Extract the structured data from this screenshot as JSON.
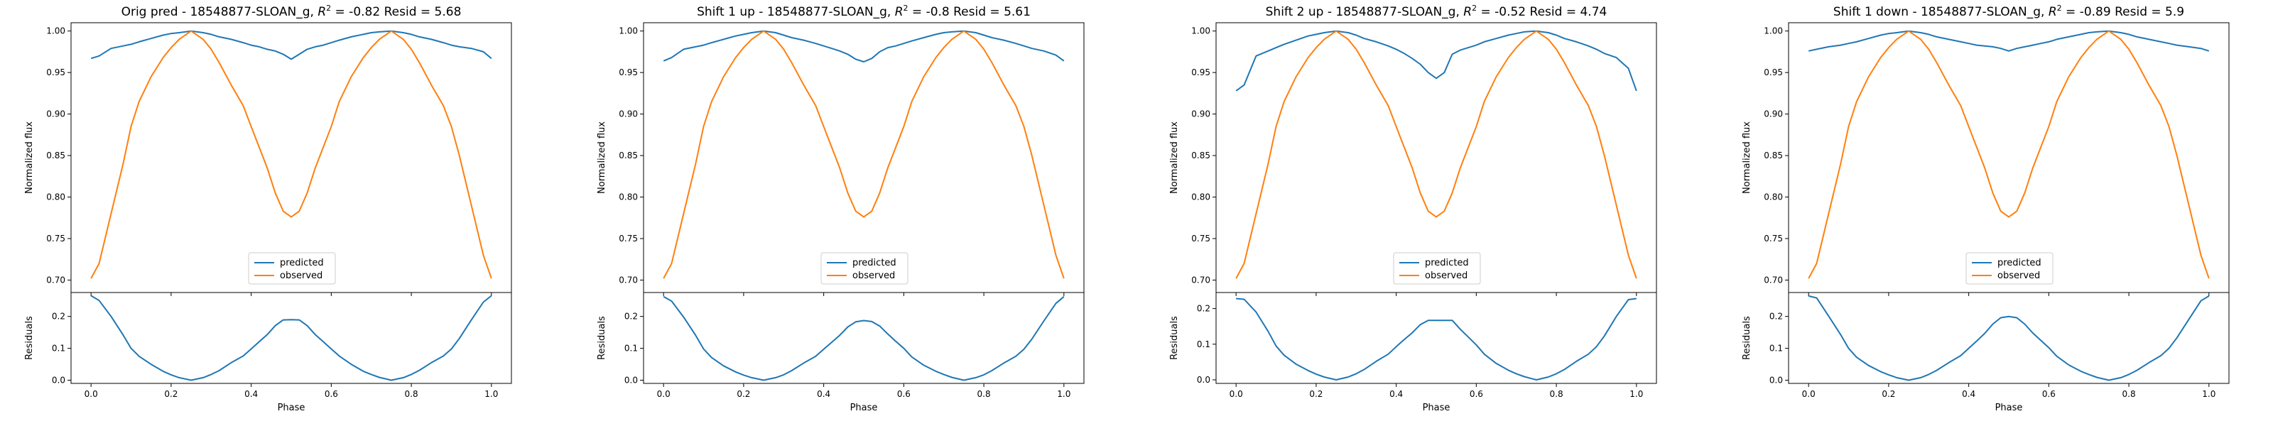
{
  "colors": {
    "predicted": "#1f77b4",
    "observed": "#ff7f0e"
  },
  "chart_data": [
    {
      "type": "line",
      "title": "Orig pred - 18548877-SLOAN_g, R² = -0.82 Resid = 5.68",
      "title_parts": {
        "prefix": "Orig pred - 18548877-SLOAN_g, ",
        "r2_value": "-0.82",
        "resid_value": "5.68"
      },
      "xlabel": "Phase",
      "ylabel_top": "Normalized flux",
      "ylabel_bottom": "Residuals",
      "xlim": [
        -0.05,
        1.05
      ],
      "ylim_top": [
        0.685,
        1.01
      ],
      "ylim_bottom": [
        -0.01,
        0.275
      ],
      "xticks": [
        0.0,
        0.2,
        0.4,
        0.6,
        0.8,
        1.0
      ],
      "yticks_top": [
        0.7,
        0.75,
        0.8,
        0.85,
        0.9,
        0.95,
        1.0
      ],
      "yticks_bottom": [
        0.0,
        0.1,
        0.2
      ],
      "legend": {
        "position": "lower-center",
        "entries": [
          "predicted",
          "observed"
        ]
      },
      "x": [
        0.0,
        0.02,
        0.05,
        0.08,
        0.1,
        0.12,
        0.15,
        0.18,
        0.2,
        0.22,
        0.25,
        0.28,
        0.3,
        0.32,
        0.35,
        0.38,
        0.4,
        0.42,
        0.44,
        0.46,
        0.48,
        0.5,
        0.52,
        0.54,
        0.56,
        0.58,
        0.6,
        0.62,
        0.65,
        0.68,
        0.7,
        0.72,
        0.75,
        0.78,
        0.8,
        0.82,
        0.85,
        0.88,
        0.9,
        0.92,
        0.95,
        0.98,
        1.0
      ],
      "series": [
        {
          "name": "predicted",
          "values": [
            0.967,
            0.97,
            0.979,
            0.982,
            0.984,
            0.987,
            0.991,
            0.995,
            0.997,
            0.998,
            1.0,
            0.998,
            0.996,
            0.993,
            0.99,
            0.986,
            0.983,
            0.981,
            0.978,
            0.976,
            0.972,
            0.966,
            0.972,
            0.978,
            0.981,
            0.983,
            0.986,
            0.989,
            0.993,
            0.996,
            0.998,
            0.999,
            1.0,
            0.998,
            0.996,
            0.993,
            0.99,
            0.986,
            0.983,
            0.981,
            0.979,
            0.975,
            0.967
          ]
        },
        {
          "name": "observed",
          "values": [
            0.702,
            0.72,
            0.78,
            0.84,
            0.885,
            0.915,
            0.945,
            0.968,
            0.98,
            0.99,
            1.0,
            0.99,
            0.978,
            0.962,
            0.935,
            0.91,
            0.885,
            0.86,
            0.835,
            0.805,
            0.783,
            0.776,
            0.783,
            0.805,
            0.835,
            0.86,
            0.885,
            0.915,
            0.945,
            0.968,
            0.98,
            0.99,
            1.0,
            0.99,
            0.978,
            0.962,
            0.935,
            0.91,
            0.885,
            0.85,
            0.79,
            0.73,
            0.702
          ]
        },
        {
          "name": "residuals",
          "values": [
            0.265,
            0.25,
            0.2,
            0.142,
            0.1,
            0.075,
            0.05,
            0.028,
            0.017,
            0.008,
            0.0,
            0.008,
            0.018,
            0.03,
            0.055,
            0.076,
            0.098,
            0.121,
            0.143,
            0.171,
            0.189,
            0.19,
            0.189,
            0.171,
            0.143,
            0.121,
            0.098,
            0.076,
            0.05,
            0.028,
            0.018,
            0.009,
            0.0,
            0.008,
            0.018,
            0.031,
            0.055,
            0.076,
            0.098,
            0.131,
            0.189,
            0.245,
            0.265
          ]
        }
      ]
    },
    {
      "type": "line",
      "title": "Shift 1 up - 18548877-SLOAN_g, R² = -0.8 Resid = 5.61",
      "title_parts": {
        "prefix": "Shift 1 up - 18548877-SLOAN_g, ",
        "r2_value": "-0.8",
        "resid_value": "5.61"
      },
      "xlabel": "Phase",
      "ylabel_top": "Normalized flux",
      "ylabel_bottom": "Residuals",
      "xlim": [
        -0.05,
        1.05
      ],
      "ylim_top": [
        0.685,
        1.01
      ],
      "ylim_bottom": [
        -0.01,
        0.275
      ],
      "xticks": [
        0.0,
        0.2,
        0.4,
        0.6,
        0.8,
        1.0
      ],
      "yticks_top": [
        0.7,
        0.75,
        0.8,
        0.85,
        0.9,
        0.95,
        1.0
      ],
      "yticks_bottom": [
        0.0,
        0.1,
        0.2
      ],
      "legend": {
        "position": "lower-center",
        "entries": [
          "predicted",
          "observed"
        ]
      },
      "x": [
        0.0,
        0.02,
        0.05,
        0.08,
        0.1,
        0.12,
        0.15,
        0.18,
        0.2,
        0.22,
        0.25,
        0.28,
        0.3,
        0.32,
        0.35,
        0.38,
        0.4,
        0.42,
        0.44,
        0.46,
        0.48,
        0.5,
        0.52,
        0.54,
        0.56,
        0.58,
        0.6,
        0.62,
        0.65,
        0.68,
        0.7,
        0.72,
        0.75,
        0.78,
        0.8,
        0.82,
        0.85,
        0.88,
        0.9,
        0.92,
        0.95,
        0.98,
        1.0
      ],
      "series": [
        {
          "name": "predicted",
          "values": [
            0.964,
            0.968,
            0.978,
            0.981,
            0.983,
            0.986,
            0.99,
            0.994,
            0.996,
            0.998,
            1.0,
            0.998,
            0.995,
            0.992,
            0.989,
            0.985,
            0.982,
            0.979,
            0.976,
            0.972,
            0.966,
            0.963,
            0.967,
            0.975,
            0.98,
            0.982,
            0.985,
            0.988,
            0.992,
            0.996,
            0.998,
            0.999,
            1.0,
            0.998,
            0.995,
            0.992,
            0.989,
            0.985,
            0.982,
            0.979,
            0.976,
            0.971,
            0.964
          ]
        },
        {
          "name": "observed",
          "values": [
            0.702,
            0.72,
            0.78,
            0.84,
            0.885,
            0.915,
            0.945,
            0.968,
            0.98,
            0.99,
            1.0,
            0.99,
            0.978,
            0.962,
            0.935,
            0.91,
            0.885,
            0.86,
            0.835,
            0.805,
            0.783,
            0.776,
            0.783,
            0.805,
            0.835,
            0.86,
            0.885,
            0.915,
            0.945,
            0.968,
            0.98,
            0.99,
            1.0,
            0.99,
            0.978,
            0.962,
            0.935,
            0.91,
            0.885,
            0.85,
            0.79,
            0.73,
            0.702
          ]
        },
        {
          "name": "residuals",
          "values": [
            0.262,
            0.248,
            0.198,
            0.141,
            0.098,
            0.071,
            0.045,
            0.026,
            0.016,
            0.008,
            0.0,
            0.008,
            0.017,
            0.03,
            0.054,
            0.075,
            0.097,
            0.119,
            0.141,
            0.167,
            0.183,
            0.187,
            0.184,
            0.17,
            0.145,
            0.122,
            0.1,
            0.073,
            0.047,
            0.028,
            0.018,
            0.009,
            0.0,
            0.008,
            0.017,
            0.03,
            0.054,
            0.075,
            0.097,
            0.129,
            0.186,
            0.241,
            0.262
          ]
        }
      ]
    },
    {
      "type": "line",
      "title": "Shift 2 up - 18548877-SLOAN_g, R² = -0.52 Resid = 4.74",
      "title_parts": {
        "prefix": "Shift 2 up - 18548877-SLOAN_g, ",
        "r2_value": "-0.52",
        "resid_value": "4.74"
      },
      "xlabel": "Phase",
      "ylabel_top": "Normalized flux",
      "ylabel_bottom": "Residuals",
      "xlim": [
        -0.05,
        1.05
      ],
      "ylim_top": [
        0.685,
        1.01
      ],
      "ylim_bottom": [
        -0.01,
        0.245
      ],
      "xticks": [
        0.0,
        0.2,
        0.4,
        0.6,
        0.8,
        1.0
      ],
      "yticks_top": [
        0.7,
        0.75,
        0.8,
        0.85,
        0.9,
        0.95,
        1.0
      ],
      "yticks_bottom": [
        0.0,
        0.1,
        0.2
      ],
      "legend": {
        "position": "lower-center",
        "entries": [
          "predicted",
          "observed"
        ]
      },
      "x": [
        0.0,
        0.02,
        0.05,
        0.08,
        0.1,
        0.12,
        0.15,
        0.18,
        0.2,
        0.22,
        0.25,
        0.28,
        0.3,
        0.32,
        0.35,
        0.38,
        0.4,
        0.42,
        0.44,
        0.46,
        0.48,
        0.5,
        0.52,
        0.54,
        0.56,
        0.58,
        0.6,
        0.62,
        0.65,
        0.68,
        0.7,
        0.72,
        0.75,
        0.78,
        0.8,
        0.82,
        0.85,
        0.88,
        0.9,
        0.92,
        0.95,
        0.98,
        1.0
      ],
      "series": [
        {
          "name": "predicted",
          "values": [
            0.928,
            0.935,
            0.97,
            0.976,
            0.98,
            0.984,
            0.989,
            0.994,
            0.996,
            0.998,
            1.0,
            0.998,
            0.995,
            0.991,
            0.987,
            0.982,
            0.978,
            0.973,
            0.967,
            0.96,
            0.95,
            0.943,
            0.95,
            0.972,
            0.977,
            0.98,
            0.983,
            0.987,
            0.991,
            0.995,
            0.997,
            0.999,
            1.0,
            0.998,
            0.995,
            0.991,
            0.987,
            0.982,
            0.978,
            0.973,
            0.968,
            0.955,
            0.928
          ]
        },
        {
          "name": "observed",
          "values": [
            0.702,
            0.72,
            0.78,
            0.84,
            0.885,
            0.915,
            0.945,
            0.968,
            0.98,
            0.99,
            1.0,
            0.99,
            0.978,
            0.962,
            0.935,
            0.91,
            0.885,
            0.86,
            0.835,
            0.805,
            0.783,
            0.776,
            0.783,
            0.805,
            0.835,
            0.86,
            0.885,
            0.915,
            0.945,
            0.968,
            0.98,
            0.99,
            1.0,
            0.99,
            0.978,
            0.962,
            0.935,
            0.91,
            0.885,
            0.85,
            0.79,
            0.73,
            0.702
          ]
        },
        {
          "name": "residuals",
          "values": [
            0.228,
            0.226,
            0.19,
            0.136,
            0.095,
            0.069,
            0.044,
            0.026,
            0.016,
            0.008,
            0.0,
            0.008,
            0.017,
            0.029,
            0.052,
            0.072,
            0.093,
            0.113,
            0.132,
            0.155,
            0.167,
            0.167,
            0.167,
            0.167,
            0.142,
            0.12,
            0.098,
            0.072,
            0.046,
            0.027,
            0.017,
            0.009,
            0.0,
            0.008,
            0.017,
            0.029,
            0.052,
            0.072,
            0.093,
            0.123,
            0.178,
            0.225,
            0.228
          ]
        }
      ]
    },
    {
      "type": "line",
      "title": "Shift 1 down - 18548877-SLOAN_g, R² = -0.89 Resid = 5.9",
      "title_parts": {
        "prefix": "Shift 1 down - 18548877-SLOAN_g, ",
        "r2_value": "-0.89",
        "resid_value": "5.9"
      },
      "xlabel": "Phase",
      "ylabel_top": "Normalized flux",
      "ylabel_bottom": "Residuals",
      "xlim": [
        -0.05,
        1.05
      ],
      "ylim_top": [
        0.685,
        1.01
      ],
      "ylim_bottom": [
        -0.01,
        0.275
      ],
      "xticks": [
        0.0,
        0.2,
        0.4,
        0.6,
        0.8,
        1.0
      ],
      "yticks_top": [
        0.7,
        0.75,
        0.8,
        0.85,
        0.9,
        0.95,
        1.0
      ],
      "yticks_bottom": [
        0.0,
        0.1,
        0.2
      ],
      "legend": {
        "position": "lower-center",
        "entries": [
          "predicted",
          "observed"
        ]
      },
      "x": [
        0.0,
        0.02,
        0.05,
        0.08,
        0.1,
        0.12,
        0.15,
        0.18,
        0.2,
        0.22,
        0.25,
        0.28,
        0.3,
        0.32,
        0.35,
        0.38,
        0.4,
        0.42,
        0.44,
        0.46,
        0.48,
        0.5,
        0.52,
        0.54,
        0.56,
        0.58,
        0.6,
        0.62,
        0.65,
        0.68,
        0.7,
        0.72,
        0.75,
        0.78,
        0.8,
        0.82,
        0.85,
        0.88,
        0.9,
        0.92,
        0.95,
        0.98,
        1.0
      ],
      "series": [
        {
          "name": "predicted",
          "values": [
            0.976,
            0.978,
            0.981,
            0.983,
            0.985,
            0.987,
            0.991,
            0.995,
            0.997,
            0.998,
            1.0,
            0.998,
            0.996,
            0.993,
            0.99,
            0.987,
            0.985,
            0.983,
            0.982,
            0.981,
            0.979,
            0.976,
            0.979,
            0.981,
            0.983,
            0.985,
            0.987,
            0.99,
            0.993,
            0.996,
            0.998,
            0.999,
            1.0,
            0.998,
            0.996,
            0.993,
            0.99,
            0.987,
            0.985,
            0.983,
            0.981,
            0.979,
            0.976
          ]
        },
        {
          "name": "observed",
          "values": [
            0.702,
            0.72,
            0.78,
            0.84,
            0.885,
            0.915,
            0.945,
            0.968,
            0.98,
            0.99,
            1.0,
            0.99,
            0.978,
            0.962,
            0.935,
            0.91,
            0.885,
            0.86,
            0.835,
            0.805,
            0.783,
            0.776,
            0.783,
            0.805,
            0.835,
            0.86,
            0.885,
            0.915,
            0.945,
            0.968,
            0.98,
            0.99,
            1.0,
            0.99,
            0.978,
            0.962,
            0.935,
            0.91,
            0.885,
            0.85,
            0.79,
            0.73,
            0.702
          ]
        },
        {
          "name": "residuals",
          "values": [
            0.264,
            0.258,
            0.201,
            0.143,
            0.1,
            0.072,
            0.046,
            0.027,
            0.017,
            0.008,
            0.0,
            0.008,
            0.018,
            0.031,
            0.055,
            0.077,
            0.1,
            0.123,
            0.147,
            0.176,
            0.196,
            0.2,
            0.196,
            0.176,
            0.148,
            0.125,
            0.102,
            0.075,
            0.048,
            0.028,
            0.018,
            0.009,
            0.0,
            0.008,
            0.018,
            0.031,
            0.055,
            0.077,
            0.1,
            0.133,
            0.191,
            0.249,
            0.264
          ]
        }
      ]
    }
  ]
}
